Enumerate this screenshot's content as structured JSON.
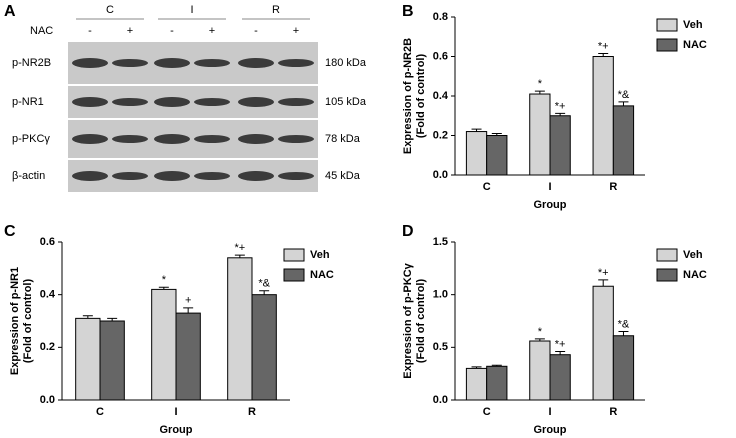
{
  "blot": {
    "panel_label": "A",
    "groups": [
      "C",
      "I",
      "R"
    ],
    "treatment_label": "NAC",
    "treatment_signs": [
      "-",
      "+",
      "-",
      "+",
      "-",
      "+"
    ],
    "rows": [
      {
        "protein": "p-NR2B",
        "size": "180 kDa"
      },
      {
        "protein": "p-NR1",
        "size": "105 kDa"
      },
      {
        "protein": "p-PKCγ",
        "size": "78 kDa"
      },
      {
        "protein": "β-actin",
        "size": "45 kDa"
      }
    ]
  },
  "chart_data": [
    {
      "type": "bar",
      "panel_label": "B",
      "xlabel": "Group",
      "ylabel": [
        "Expression of p-NR2B",
        "(Fold of control)"
      ],
      "categories": [
        "C",
        "I",
        "R"
      ],
      "ylim": [
        0,
        0.8
      ],
      "yticks": [
        {
          "value": 0,
          "label": "0.0"
        },
        0.2,
        0.4,
        0.6,
        0.8
      ],
      "series": [
        {
          "name": "Veh",
          "color": "#d4d4d4",
          "values": [
            0.22,
            0.41,
            0.6
          ],
          "errors": [
            0.012,
            0.015,
            0.015
          ],
          "markers": [
            null,
            "*",
            "*+"
          ]
        },
        {
          "name": "NAC",
          "color": "#666666",
          "values": [
            0.2,
            0.3,
            0.35
          ],
          "errors": [
            0.01,
            0.012,
            0.02
          ],
          "markers": [
            null,
            "*+",
            "*&"
          ]
        }
      ]
    },
    {
      "type": "bar",
      "panel_label": "C",
      "xlabel": "Group",
      "ylabel": [
        "Expression of p-NR1",
        "(Fold of control)"
      ],
      "categories": [
        "C",
        "I",
        "R"
      ],
      "ylim": [
        0,
        0.6
      ],
      "yticks": [
        {
          "value": 0,
          "label": "0.0"
        },
        0.2,
        0.4,
        0.6
      ],
      "series": [
        {
          "name": "Veh",
          "color": "#d4d4d4",
          "values": [
            0.31,
            0.42,
            0.54
          ],
          "errors": [
            0.01,
            0.008,
            0.01
          ],
          "markers": [
            null,
            "*",
            "*+"
          ]
        },
        {
          "name": "NAC",
          "color": "#666666",
          "values": [
            0.3,
            0.33,
            0.4
          ],
          "errors": [
            0.01,
            0.02,
            0.015
          ],
          "markers": [
            null,
            "+",
            "*&"
          ]
        }
      ]
    },
    {
      "type": "bar",
      "panel_label": "D",
      "xlabel": "Group",
      "ylabel": [
        "Expression of p-PKCγ",
        "(Fold of control)"
      ],
      "categories": [
        "C",
        "I",
        "R"
      ],
      "ylim": [
        0,
        1.5
      ],
      "yticks": [
        {
          "value": 0,
          "label": "0.0"
        },
        0.5,
        {
          "value": 1,
          "label": "1.0"
        },
        1.5
      ],
      "series": [
        {
          "name": "Veh",
          "color": "#d4d4d4",
          "values": [
            0.3,
            0.56,
            1.08
          ],
          "errors": [
            0.015,
            0.02,
            0.06
          ],
          "markers": [
            null,
            "*",
            "*+"
          ]
        },
        {
          "name": "NAC",
          "color": "#666666",
          "values": [
            0.32,
            0.43,
            0.61
          ],
          "errors": [
            0.01,
            0.03,
            0.04
          ],
          "markers": [
            null,
            "*+",
            "*&"
          ]
        }
      ]
    }
  ]
}
